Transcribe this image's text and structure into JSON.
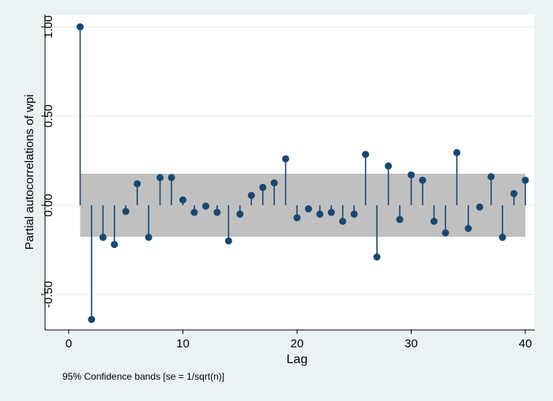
{
  "chart_data": {
    "type": "stem",
    "xlabel": "Lag",
    "ylabel": "Partial autocorrelations of wpi",
    "note": "95% Confidence bands [se = 1/sqrt(n)]",
    "xlim": [
      0,
      41
    ],
    "ylim": [
      -0.68,
      1.05
    ],
    "xticks": [
      0,
      10,
      20,
      30,
      40
    ],
    "yticks": [
      -0.5,
      0,
      0.5,
      1
    ],
    "ytick_labels": [
      "-0.50",
      "0.00",
      "0.50",
      "1.00"
    ],
    "grid": "horizontal",
    "confidence_band": 0.177,
    "lags": [
      1,
      2,
      3,
      4,
      5,
      6,
      7,
      8,
      9,
      10,
      11,
      12,
      13,
      14,
      15,
      16,
      17,
      18,
      19,
      20,
      21,
      22,
      23,
      24,
      25,
      26,
      27,
      28,
      29,
      30,
      31,
      32,
      33,
      34,
      35,
      36,
      37,
      38,
      39,
      40
    ],
    "values": [
      1.0,
      -0.64,
      -0.18,
      -0.22,
      -0.035,
      0.12,
      -0.18,
      0.155,
      0.155,
      0.03,
      -0.04,
      -0.005,
      -0.04,
      -0.2,
      -0.05,
      0.055,
      0.1,
      0.125,
      0.26,
      -0.07,
      -0.02,
      -0.05,
      -0.04,
      -0.09,
      -0.05,
      0.285,
      -0.29,
      0.22,
      -0.08,
      0.17,
      0.14,
      -0.09,
      -0.155,
      0.295,
      -0.13,
      -0.01,
      0.16,
      -0.18,
      0.065,
      0.14
    ],
    "colors": {
      "marker": "#1a476f",
      "band": "#c0c0c0",
      "background": "#eaf2f3"
    }
  }
}
